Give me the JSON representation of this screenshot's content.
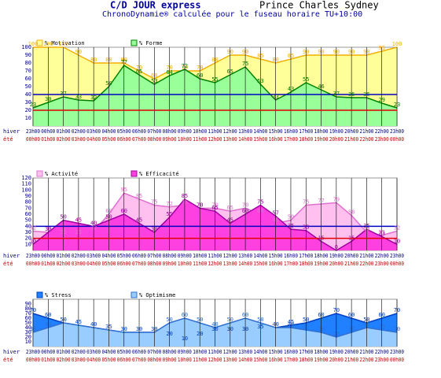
{
  "header": {
    "title": "C/D JOUR express",
    "place": "Prince Charles Sydney",
    "subtitle": "ChronoDynamie® calculée pour le fuseau horaire TU+10:00"
  },
  "chart_data": [
    {
      "type": "area",
      "categories": [
        "23h00",
        "00h00",
        "01h00",
        "02h00",
        "03h00",
        "04h00",
        "05h00",
        "06h00",
        "07h00",
        "08h00",
        "09h00",
        "10h00",
        "11h00",
        "12h00",
        "13h00",
        "14h00",
        "15h00",
        "16h00",
        "17h00",
        "18h00",
        "19h00",
        "20h00",
        "21h00",
        "22h00",
        "23h00"
      ],
      "categories_2": [
        "00h00",
        "01h00",
        "02h00",
        "03h00",
        "04h00",
        "05h00",
        "06h00",
        "07h00",
        "08h00",
        "09h00",
        "10h00",
        "11h00",
        "12h00",
        "13h00",
        "14h00",
        "15h00",
        "16h00",
        "17h00",
        "18h00",
        "19h00",
        "20h00",
        "21h00",
        "22h00",
        "23h00",
        "00h00"
      ],
      "row_labels": [
        "hiver",
        "été"
      ],
      "ylim": [
        0,
        100
      ],
      "yticks": [
        10,
        20,
        30,
        40,
        50,
        60,
        70,
        80,
        90,
        100
      ],
      "hlines": [
        {
          "value": 20,
          "color": "#e00000"
        },
        {
          "value": 40,
          "color": "#0000c0"
        }
      ],
      "series": [
        {
          "name": "% Motivation",
          "color": "#ffff99",
          "line": "#f0b000",
          "values": [
            100,
            100,
            100,
            90,
            80,
            80,
            80,
            70,
            60,
            70,
            70,
            70,
            80,
            90,
            90,
            85,
            80,
            85,
            90,
            90,
            90,
            90,
            90,
            95,
            100
          ]
        },
        {
          "name": "% Forme",
          "color": "#99ff99",
          "line": "#008000",
          "values": [
            23,
            30,
            37,
            33,
            32,
            50,
            77,
            65,
            53,
            64,
            72,
            60,
            55,
            65,
            75,
            53,
            33,
            43,
            55,
            46,
            37,
            36,
            36,
            29,
            23
          ]
        }
      ]
    },
    {
      "type": "area",
      "categories": [
        "23h00",
        "00h00",
        "01h00",
        "02h00",
        "03h00",
        "04h00",
        "05h00",
        "06h00",
        "07h00",
        "08h00",
        "09h00",
        "10h00",
        "11h00",
        "12h00",
        "13h00",
        "14h00",
        "15h00",
        "16h00",
        "17h00",
        "18h00",
        "19h00",
        "20h00",
        "21h00",
        "22h00",
        "23h00"
      ],
      "categories_2": [
        "00h00",
        "01h00",
        "02h00",
        "03h00",
        "04h00",
        "05h00",
        "06h00",
        "07h00",
        "08h00",
        "09h00",
        "10h00",
        "11h00",
        "12h00",
        "13h00",
        "14h00",
        "15h00",
        "16h00",
        "17h00",
        "18h00",
        "19h00",
        "20h00",
        "21h00",
        "22h00",
        "23h00",
        "00h00"
      ],
      "row_labels": [
        "hiver",
        "été"
      ],
      "ylim": [
        0,
        120
      ],
      "yticks": [
        10,
        20,
        30,
        40,
        50,
        60,
        70,
        80,
        90,
        100,
        110,
        120
      ],
      "hlines": [
        {
          "value": 20,
          "color": "#e00000"
        },
        {
          "value": 40,
          "color": "#0000c0"
        }
      ],
      "series": [
        {
          "name": "% Activité",
          "color": "#ffc0f0",
          "line": "#e070d0",
          "values": [
            32,
            30,
            25,
            25,
            32,
            60,
            95,
            85,
            75,
            72,
            75,
            70,
            70,
            65,
            70,
            60,
            45,
            50,
            75,
            77,
            79,
            58,
            30,
            25,
            32
          ]
        },
        {
          "name": "% Efficacité",
          "color": "#ff40e0",
          "line": "#a000a0",
          "values": [
            10,
            30,
            50,
            45,
            40,
            50,
            60,
            45,
            30,
            55,
            85,
            70,
            65,
            45,
            60,
            75,
            57,
            35,
            33,
            15,
            0,
            15,
            35,
            23,
            10
          ]
        }
      ]
    },
    {
      "type": "area",
      "categories": [
        "23h00",
        "00h00",
        "01h00",
        "02h00",
        "03h00",
        "04h00",
        "05h00",
        "06h00",
        "07h00",
        "08h00",
        "09h00",
        "10h00",
        "11h00",
        "12h00",
        "13h00",
        "14h00",
        "15h00",
        "16h00",
        "17h00",
        "18h00",
        "19h00",
        "20h00",
        "21h00",
        "22h00",
        "23h00"
      ],
      "categories_2": [
        "00h00",
        "01h00",
        "02h00",
        "03h00",
        "04h00",
        "05h00",
        "06h00",
        "07h00",
        "08h00",
        "09h00",
        "10h00",
        "11h00",
        "12h00",
        "13h00",
        "14h00",
        "15h00",
        "16h00",
        "17h00",
        "18h00",
        "19h00",
        "20h00",
        "21h00",
        "22h00",
        "23h00",
        "00h00"
      ],
      "row_labels": [
        "hiver",
        "été"
      ],
      "ylim": [
        0,
        100
      ],
      "yticks": [
        10,
        20,
        30,
        40,
        50,
        60,
        70,
        80,
        90
      ],
      "hlines": [],
      "series": [
        {
          "name": "% Stress",
          "color": "#2080ff",
          "line": "#0040c0",
          "values": [
            70,
            60,
            50,
            45,
            40,
            35,
            30,
            30,
            30,
            20,
            10,
            20,
            30,
            30,
            30,
            35,
            40,
            45,
            50,
            60,
            70,
            60,
            50,
            60,
            70
          ]
        },
        {
          "name": "% Optimisme",
          "color": "#99ccff",
          "line": "#3070d0",
          "values": [
            30,
            40,
            50,
            45,
            40,
            35,
            30,
            30,
            30,
            50,
            60,
            50,
            40,
            50,
            60,
            50,
            40,
            40,
            35,
            30,
            20,
            30,
            40,
            35,
            30
          ]
        }
      ]
    }
  ]
}
